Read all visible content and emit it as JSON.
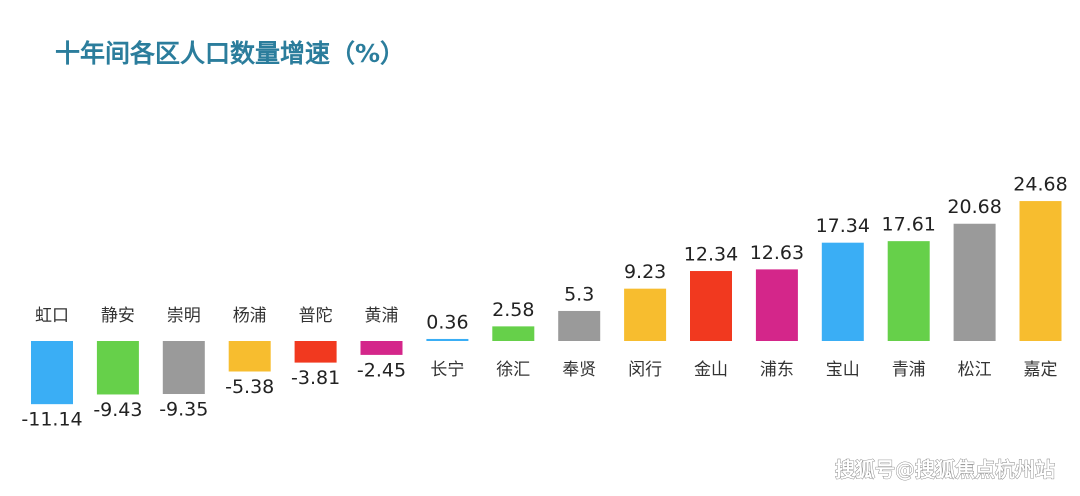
{
  "chart_data": {
    "type": "bar",
    "title": "十年间各区人口数量增速（%）",
    "categories": [
      "虹口",
      "静安",
      "崇明",
      "杨浦",
      "普陀",
      "黄浦",
      "长宁",
      "徐汇",
      "奉贤",
      "闵行",
      "金山",
      "浦东",
      "宝山",
      "青浦",
      "松江",
      "嘉定"
    ],
    "values": [
      -11.14,
      -9.43,
      -9.35,
      -5.38,
      -3.81,
      -2.45,
      0.36,
      2.58,
      5.3,
      9.23,
      12.34,
      12.63,
      17.34,
      17.61,
      20.68,
      24.68
    ],
    "colors": [
      "#3aaef5",
      "#66d04a",
      "#9a9a9a",
      "#f7bd2f",
      "#f1391f",
      "#d4268a",
      "#3aaef5",
      "#66d04a",
      "#9a9a9a",
      "#f7bd2f",
      "#f1391f",
      "#d4268a",
      "#3aaef5",
      "#66d04a",
      "#9a9a9a",
      "#f7bd2f"
    ],
    "watermark": "搜狐号@搜狐焦点杭州站"
  }
}
